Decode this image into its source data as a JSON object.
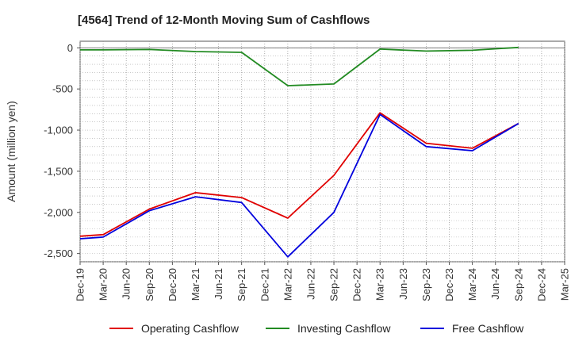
{
  "chart_data": {
    "type": "line",
    "title": "[4564]  Trend of 12-Month Moving Sum of Cashflows",
    "xlabel": "",
    "ylabel": "Amount (million yen)",
    "ylim": [
      -2600,
      80
    ],
    "yticks": [
      0,
      -500,
      -1000,
      -1500,
      -2000,
      -2500
    ],
    "ytick_labels": [
      "0",
      "-500",
      "-1,000",
      "-1,500",
      "-2,000",
      "-2,500"
    ],
    "categories": [
      "Dec-19",
      "Mar-20",
      "Jun-20",
      "Sep-20",
      "Dec-20",
      "Mar-21",
      "Jun-21",
      "Sep-21",
      "Dec-21",
      "Mar-22",
      "Jun-22",
      "Sep-22",
      "Dec-22",
      "Mar-23",
      "Jun-23",
      "Sep-23",
      "Dec-23",
      "Mar-24",
      "Jun-24",
      "Sep-24",
      "Dec-24",
      "Mar-25"
    ],
    "grid": true,
    "legend_position": "bottom",
    "series": [
      {
        "name": "Operating Cashflow",
        "color": "#e00000",
        "values": [
          -2290,
          -2270,
          null,
          -1960,
          null,
          -1760,
          null,
          -1820,
          null,
          -2070,
          null,
          -1550,
          null,
          -790,
          null,
          -1160,
          null,
          -1220,
          null,
          -920,
          null,
          null
        ]
      },
      {
        "name": "Investing Cashflow",
        "color": "#228b22",
        "values": [
          -25,
          -25,
          null,
          -20,
          null,
          -45,
          null,
          -55,
          null,
          -460,
          null,
          -440,
          null,
          -15,
          null,
          -40,
          null,
          -30,
          null,
          5,
          null,
          null
        ]
      },
      {
        "name": "Free Cashflow",
        "color": "#0000dd",
        "values": [
          -2320,
          -2300,
          null,
          -1980,
          null,
          -1810,
          null,
          -1880,
          null,
          -2540,
          null,
          -2000,
          null,
          -810,
          null,
          -1200,
          null,
          -1250,
          null,
          -920,
          null,
          null
        ]
      }
    ]
  }
}
